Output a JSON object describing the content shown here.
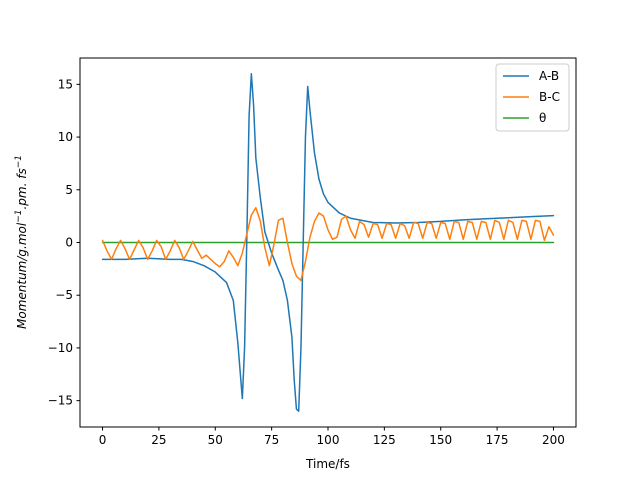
{
  "chart_data": {
    "type": "line",
    "xlabel": "Time/fs",
    "ylabel_parts": {
      "base": "Momentum/g.mol",
      "exp1": "−1",
      "mid": ".pm. fs",
      "exp2": "−1"
    },
    "xlim": [
      -10,
      210
    ],
    "ylim": [
      -17.5,
      17.5
    ],
    "x_ticks": [
      0,
      25,
      50,
      75,
      100,
      125,
      150,
      175,
      200
    ],
    "x_tick_labels": [
      "0",
      "25",
      "50",
      "75",
      "100",
      "125",
      "150",
      "175",
      "200"
    ],
    "y_ticks": [
      -15,
      -10,
      -5,
      0,
      5,
      10,
      15
    ],
    "y_tick_labels": [
      "−15",
      "−10",
      "−5",
      "0",
      "5",
      "10",
      "15"
    ],
    "grid": false,
    "legend_position": "top-right",
    "series": [
      {
        "name": "A-B",
        "color": "#1f77b4",
        "x": [
          0,
          10,
          20,
          30,
          35,
          40,
          45,
          50,
          55,
          58,
          60,
          62,
          63,
          64,
          65,
          66,
          67,
          68,
          70,
          72,
          75,
          78,
          80,
          82,
          84,
          85,
          86,
          87,
          88,
          89,
          90,
          91,
          92,
          94,
          96,
          98,
          100,
          105,
          110,
          120,
          130,
          140,
          150,
          160,
          170,
          180,
          190,
          200
        ],
        "y": [
          -1.6,
          -1.6,
          -1.5,
          -1.6,
          -1.6,
          -1.8,
          -2.2,
          -2.8,
          -3.8,
          -5.5,
          -9.5,
          -14.8,
          -10.0,
          0.5,
          12.0,
          16.0,
          13.0,
          8.0,
          4.2,
          1.0,
          -1.0,
          -2.6,
          -3.6,
          -5.5,
          -9.0,
          -13.0,
          -15.8,
          -16.0,
          -10.0,
          0.0,
          10.0,
          14.8,
          12.5,
          8.5,
          6.0,
          4.6,
          3.8,
          2.8,
          2.3,
          1.9,
          1.85,
          1.9,
          2.0,
          2.15,
          2.25,
          2.35,
          2.45,
          2.55
        ]
      },
      {
        "name": "B-C",
        "color": "#ff7f0e",
        "x": [
          0,
          2,
          4,
          6,
          8,
          10,
          12,
          14,
          16,
          18,
          20,
          22,
          24,
          26,
          28,
          30,
          32,
          34,
          36,
          38,
          40,
          42,
          44,
          46,
          48,
          50,
          52,
          54,
          56,
          58,
          60,
          62,
          64,
          66,
          68,
          70,
          72,
          74,
          76,
          78,
          80,
          82,
          84,
          86,
          88,
          90,
          92,
          94,
          96,
          98,
          100,
          102,
          104,
          106,
          108,
          110,
          112,
          114,
          116,
          118,
          120,
          122,
          124,
          126,
          128,
          130,
          132,
          134,
          136,
          138,
          140,
          142,
          144,
          146,
          148,
          150,
          152,
          154,
          156,
          158,
          160,
          162,
          164,
          166,
          168,
          170,
          172,
          174,
          176,
          178,
          180,
          182,
          184,
          186,
          188,
          190,
          192,
          194,
          196,
          198,
          200
        ],
        "y": [
          0.2,
          -0.8,
          -1.6,
          -0.6,
          0.2,
          -0.6,
          -1.6,
          -0.7,
          0.2,
          -0.5,
          -1.6,
          -0.8,
          0.2,
          -0.4,
          -1.6,
          -0.8,
          0.2,
          -0.5,
          -1.6,
          -0.8,
          0.1,
          -0.7,
          -1.5,
          -1.2,
          -1.6,
          -2.0,
          -2.3,
          -1.8,
          -0.8,
          -1.4,
          -2.2,
          -1.0,
          0.8,
          2.6,
          3.3,
          2.0,
          -0.5,
          -2.2,
          -0.2,
          2.1,
          2.3,
          0.0,
          -2.0,
          -3.2,
          -3.6,
          -1.8,
          0.5,
          2.0,
          2.8,
          2.5,
          1.2,
          0.3,
          0.5,
          2.2,
          2.5,
          1.2,
          0.4,
          2.0,
          1.7,
          0.5,
          1.8,
          1.7,
          0.4,
          1.8,
          1.7,
          0.4,
          1.8,
          1.6,
          0.4,
          1.9,
          1.8,
          0.4,
          1.9,
          1.8,
          0.4,
          1.9,
          1.8,
          0.3,
          2.0,
          1.9,
          0.3,
          2.0,
          1.9,
          0.3,
          2.0,
          1.9,
          0.3,
          2.1,
          1.9,
          0.3,
          2.1,
          1.9,
          0.3,
          2.1,
          2.0,
          0.3,
          2.1,
          2.0,
          0.2,
          1.5,
          0.7
        ]
      },
      {
        "name": "θ",
        "color": "#2ca02c",
        "x": [
          0,
          200
        ],
        "y": [
          0,
          0
        ]
      }
    ]
  }
}
